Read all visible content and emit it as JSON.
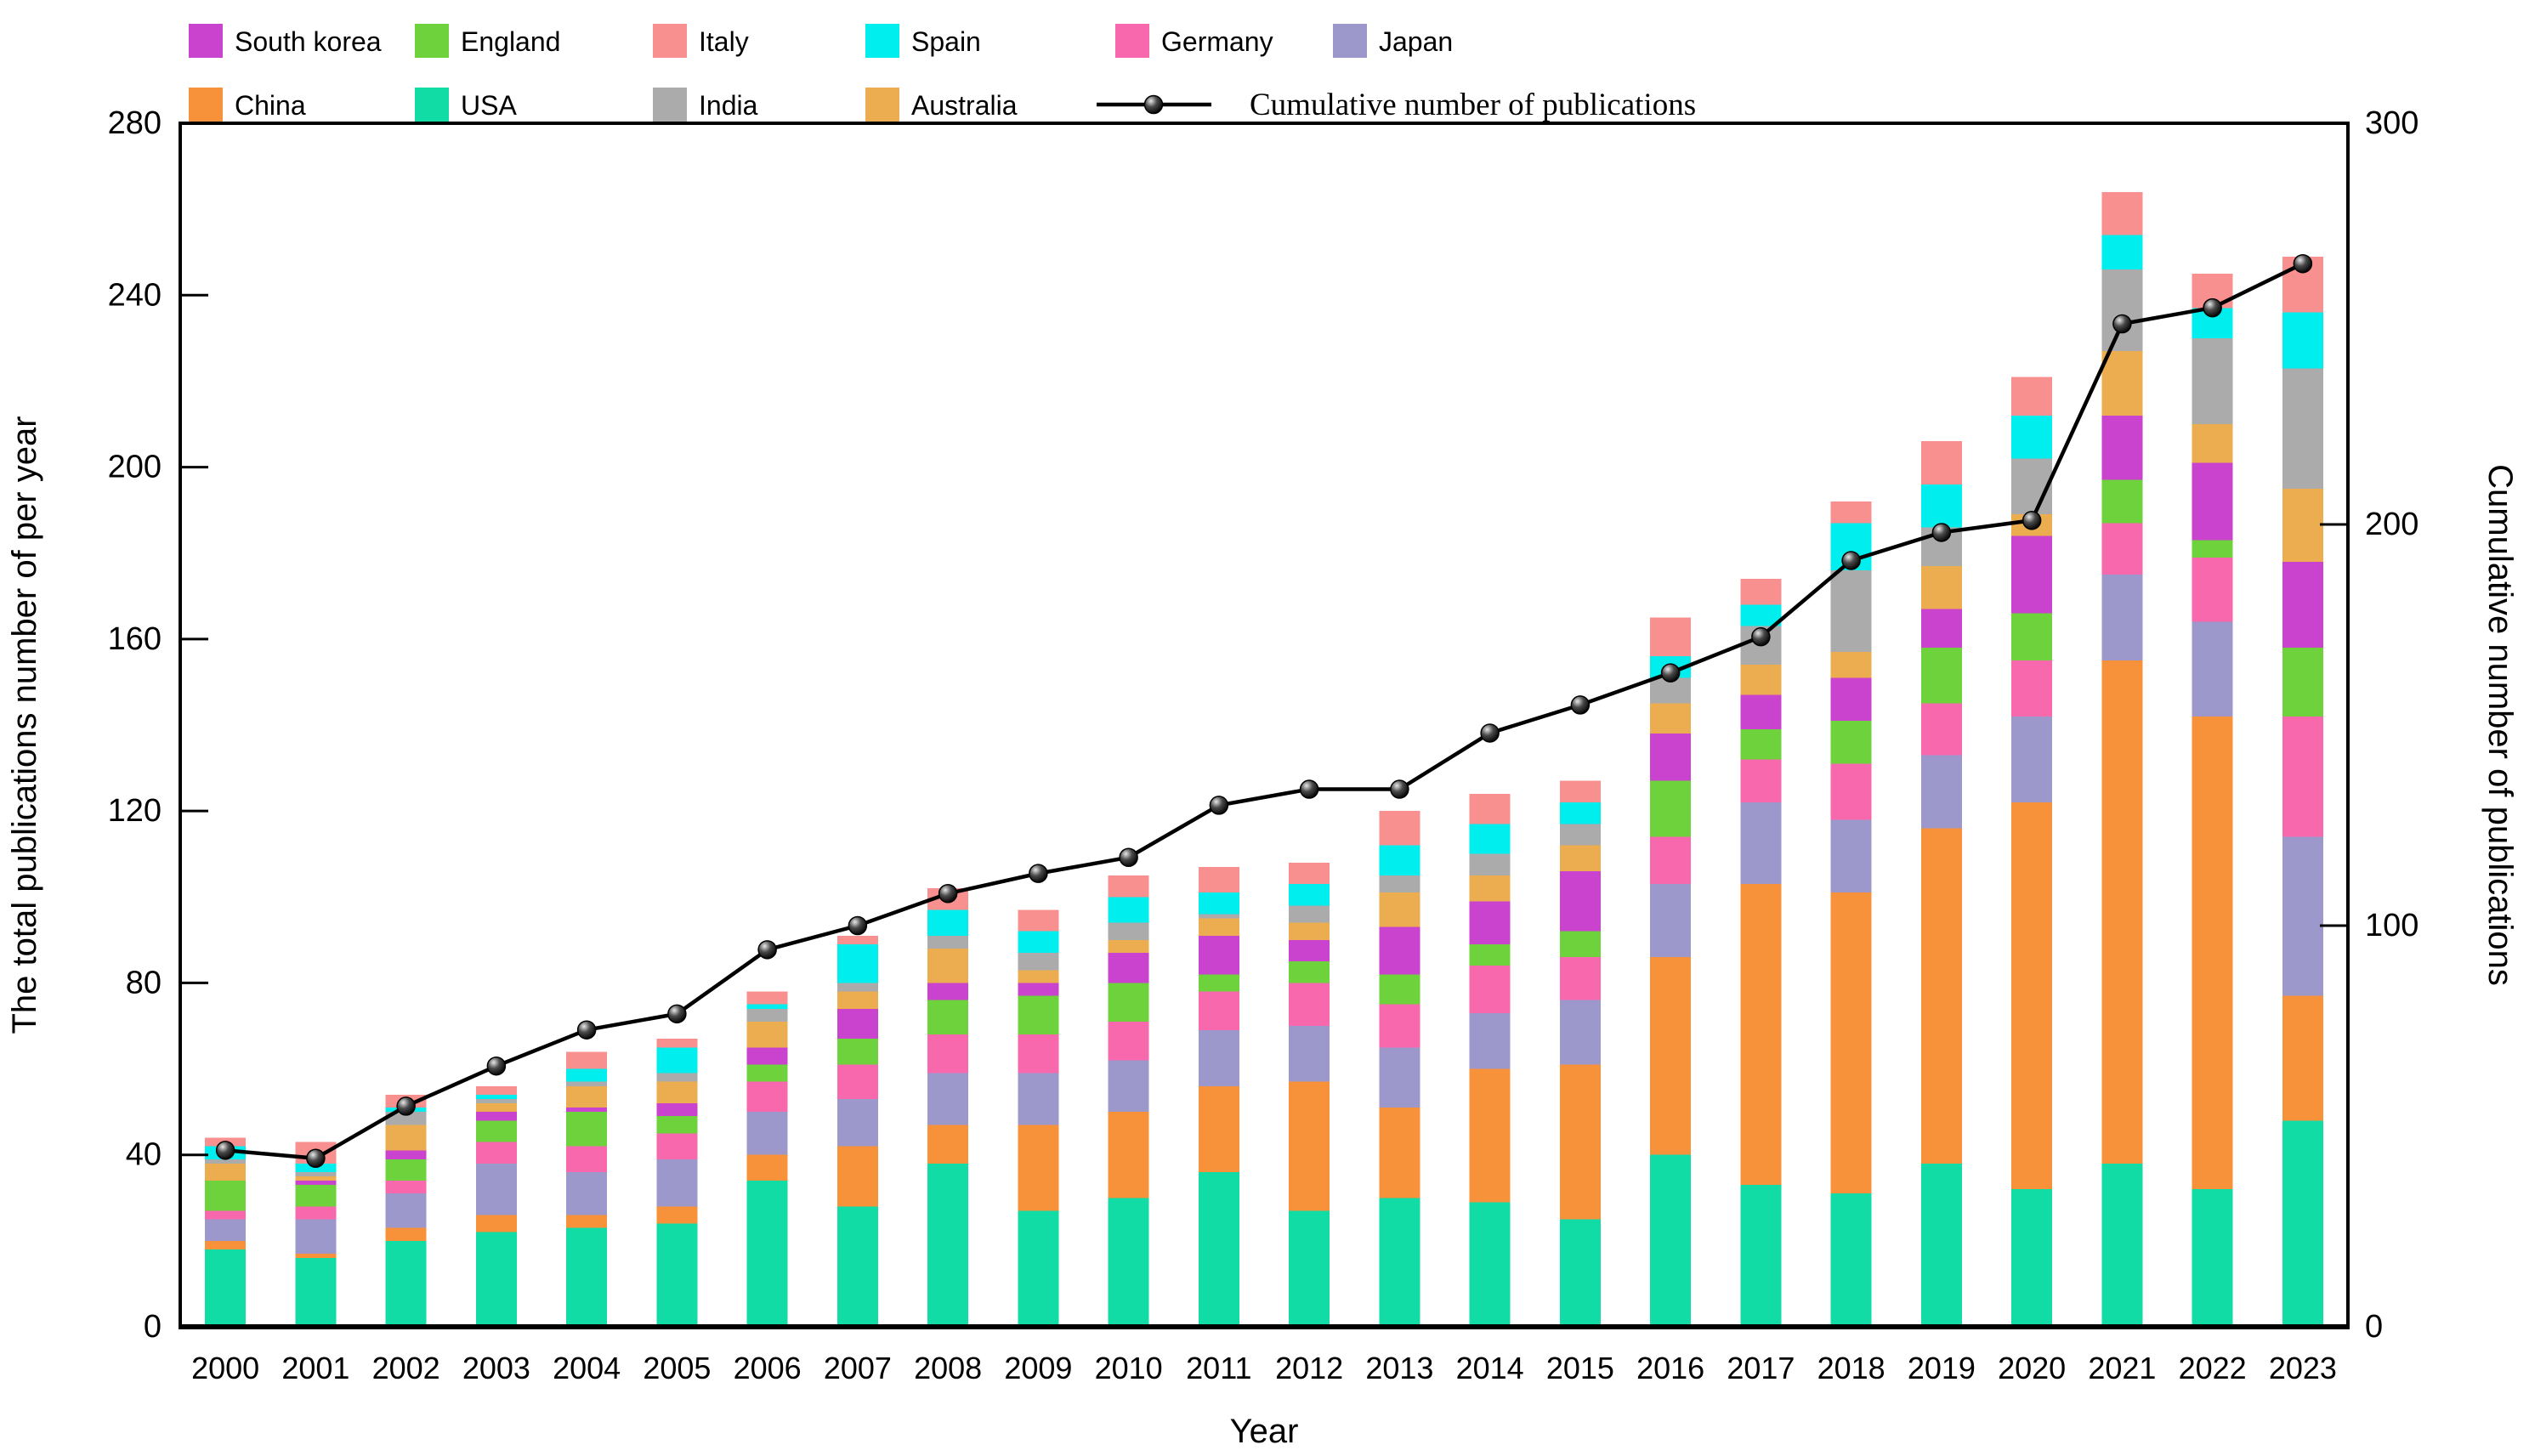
{
  "chart_data": {
    "type": "bar",
    "stacked": true,
    "title": "",
    "xlabel": "Year",
    "ylabel_left": "The total publications number of per year",
    "ylabel_right": "Cumulative number of publications",
    "ylim_left": [
      0,
      280
    ],
    "ylim_right": [
      0,
      300
    ],
    "yticks_left": [
      0,
      40,
      80,
      120,
      160,
      200,
      240,
      280
    ],
    "yticks_right": [
      0,
      100,
      200,
      300
    ],
    "grid": false,
    "legend_position": "top",
    "categories": [
      2000,
      2001,
      2002,
      2003,
      2004,
      2005,
      2006,
      2007,
      2008,
      2009,
      2010,
      2011,
      2012,
      2013,
      2014,
      2015,
      2016,
      2017,
      2018,
      2019,
      2020,
      2021,
      2022,
      2023
    ],
    "series": [
      {
        "name": "USA",
        "color": "#12DCA6",
        "values": [
          18,
          16,
          20,
          22,
          23,
          24,
          34,
          28,
          38,
          27,
          30,
          36,
          27,
          30,
          29,
          25,
          40,
          33,
          31,
          38,
          32,
          38,
          32,
          48
        ]
      },
      {
        "name": "China",
        "color": "#F8923A",
        "values": [
          2,
          1,
          3,
          4,
          3,
          4,
          6,
          14,
          9,
          20,
          20,
          20,
          30,
          21,
          31,
          36,
          46,
          70,
          70,
          78,
          90,
          117,
          110,
          29
        ]
      },
      {
        "name": "Japan",
        "color": "#9C98CC",
        "values": [
          5,
          8,
          8,
          12,
          10,
          11,
          10,
          11,
          12,
          12,
          12,
          13,
          13,
          14,
          13,
          15,
          17,
          19,
          17,
          17,
          20,
          20,
          22,
          37
        ]
      },
      {
        "name": "Germany",
        "color": "#F768AC",
        "values": [
          2,
          3,
          3,
          5,
          6,
          6,
          7,
          8,
          9,
          9,
          9,
          9,
          10,
          10,
          11,
          10,
          11,
          10,
          13,
          12,
          13,
          12,
          15,
          28
        ]
      },
      {
        "name": "England",
        "color": "#6DD23B",
        "values": [
          7,
          5,
          5,
          5,
          8,
          4,
          4,
          6,
          8,
          9,
          9,
          4,
          5,
          7,
          5,
          6,
          13,
          7,
          10,
          13,
          11,
          10,
          4,
          16
        ]
      },
      {
        "name": "South korea",
        "color": "#C943CE",
        "values": [
          0,
          1,
          2,
          2,
          1,
          3,
          4,
          7,
          4,
          3,
          7,
          9,
          5,
          11,
          10,
          14,
          11,
          8,
          10,
          9,
          18,
          15,
          18,
          20
        ]
      },
      {
        "name": "Australia",
        "color": "#EBAD4F",
        "values": [
          4,
          1,
          6,
          2,
          5,
          5,
          6,
          4,
          8,
          3,
          3,
          4,
          4,
          8,
          6,
          6,
          7,
          7,
          6,
          10,
          5,
          15,
          9,
          17
        ]
      },
      {
        "name": "India",
        "color": "#ABABAB",
        "values": [
          1,
          1,
          3,
          1,
          1,
          2,
          3,
          2,
          3,
          4,
          4,
          1,
          4,
          4,
          5,
          5,
          6,
          9,
          19,
          9,
          13,
          19,
          20,
          28
        ]
      },
      {
        "name": "Spain",
        "color": "#00EEEE",
        "values": [
          3,
          2,
          1,
          1,
          3,
          6,
          1,
          9,
          6,
          5,
          6,
          5,
          5,
          7,
          7,
          5,
          5,
          5,
          11,
          10,
          10,
          8,
          7,
          13
        ]
      },
      {
        "name": "Italy",
        "color": "#F99090",
        "values": [
          2,
          5,
          3,
          2,
          4,
          2,
          3,
          2,
          5,
          5,
          5,
          6,
          5,
          8,
          7,
          5,
          9,
          6,
          5,
          10,
          9,
          10,
          8,
          13
        ]
      }
    ],
    "line_series": {
      "name": "Cumulative number of publications",
      "axis": "right",
      "color": "#000000",
      "values": [
        44,
        42,
        55,
        65,
        74,
        78,
        94,
        100,
        108,
        113,
        117,
        130,
        134,
        134,
        148,
        155,
        163,
        172,
        191,
        198,
        201,
        250,
        254,
        265
      ]
    },
    "legend_rows": [
      [
        "South korea",
        "England",
        "Italy",
        "Spain",
        "Germany",
        "Japan"
      ],
      [
        "China",
        "USA",
        "India",
        "Australia"
      ]
    ]
  }
}
